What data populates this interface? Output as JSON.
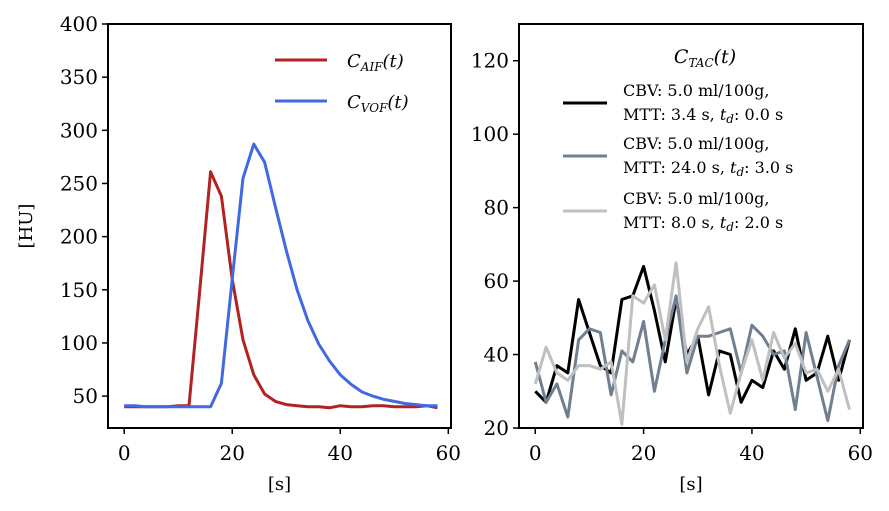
{
  "chart_data": [
    {
      "type": "line",
      "xlabel": "[s]",
      "ylabel": "[HU]",
      "xlim": [
        -3,
        60.5
      ],
      "ylim": [
        20,
        400
      ],
      "xticks": [
        0,
        20,
        40,
        60
      ],
      "yticks": [
        50,
        100,
        150,
        200,
        250,
        300,
        350,
        400
      ],
      "legend_position": "top-right",
      "series": [
        {
          "name": "C_AIF(t)",
          "label_main": "C",
          "label_sub": "AIF",
          "label_arg": "(t)",
          "color": "#b22222",
          "x": [
            0,
            2,
            4,
            6,
            8,
            10,
            12,
            14,
            16,
            18,
            20,
            22,
            24,
            26,
            28,
            30,
            32,
            34,
            36,
            38,
            40,
            42,
            44,
            46,
            48,
            50,
            52,
            54,
            56,
            58
          ],
          "y": [
            40,
            40,
            40,
            40,
            40,
            41,
            41,
            150,
            261,
            238,
            160,
            103,
            70,
            52,
            45,
            42,
            41,
            40,
            40,
            39,
            41,
            40,
            40,
            41,
            41,
            40,
            40,
            40,
            41,
            39
          ]
        },
        {
          "name": "C_VOF(t)",
          "label_main": "C",
          "label_sub": "VOF",
          "label_arg": "(t)",
          "color": "#4169e1",
          "x": [
            0,
            2,
            4,
            6,
            8,
            10,
            12,
            14,
            16,
            18,
            20,
            22,
            24,
            26,
            28,
            30,
            32,
            34,
            36,
            38,
            40,
            42,
            44,
            46,
            48,
            50,
            52,
            54,
            56,
            58
          ],
          "y": [
            41,
            41,
            40,
            40,
            40,
            40,
            40,
            40,
            40,
            62,
            160,
            255,
            287,
            270,
            228,
            187,
            150,
            121,
            99,
            83,
            70,
            61,
            54,
            50,
            47,
            45,
            43,
            42,
            41,
            41
          ]
        }
      ]
    },
    {
      "type": "line",
      "xlabel": "[s]",
      "ylabel": "",
      "xlim": [
        -3,
        60.5
      ],
      "ylim": [
        20,
        130
      ],
      "xticks": [
        0,
        20,
        40,
        60
      ],
      "yticks": [
        20,
        40,
        60,
        80,
        100,
        120
      ],
      "legend_position": "top",
      "legend_title_main": "C",
      "legend_title_sub": "TAC",
      "legend_title_arg": "(t)",
      "series": [
        {
          "name": "CBV: 5.0 ml/100g, MTT: 3.4 s, t_d: 0.0 s",
          "line1": "CBV: 5.0 ml/100g,",
          "line2_prefix": "MTT: 3.4 s, ",
          "line2_td_main": "t",
          "line2_td_sub": "d",
          "line2_suffix": ": 0.0 s",
          "color": "#000000",
          "x": [
            0,
            2,
            4,
            6,
            8,
            10,
            12,
            14,
            16,
            18,
            20,
            22,
            24,
            26,
            28,
            30,
            32,
            34,
            36,
            38,
            40,
            42,
            44,
            46,
            48,
            50,
            52,
            54,
            56,
            58
          ],
          "y": [
            30,
            27,
            37,
            35,
            55,
            46,
            37,
            35,
            55,
            56,
            64,
            52,
            38,
            55,
            40,
            45,
            29,
            41,
            40,
            27,
            33,
            31,
            41,
            36,
            47,
            33,
            35,
            45,
            33,
            44
          ]
        },
        {
          "name": "CBV: 5.0 ml/100g, MTT: 24.0 s, t_d: 3.0 s",
          "line1": "CBV: 5.0 ml/100g,",
          "line2_prefix": "MTT: 24.0 s, ",
          "line2_td_main": "t",
          "line2_td_sub": "d",
          "line2_suffix": ": 3.0 s",
          "color": "#708090",
          "x": [
            0,
            2,
            4,
            6,
            8,
            10,
            12,
            14,
            16,
            18,
            20,
            22,
            24,
            26,
            28,
            30,
            32,
            34,
            36,
            38,
            40,
            42,
            44,
            46,
            48,
            50,
            52,
            54,
            56,
            58
          ],
          "y": [
            38,
            27,
            32,
            23,
            44,
            47,
            46,
            29,
            41,
            38,
            49,
            30,
            44,
            56,
            35,
            45,
            45,
            46,
            47,
            35,
            48,
            45,
            40,
            41,
            25,
            46,
            34,
            22,
            37,
            44
          ]
        },
        {
          "name": "CBV: 5.0 ml/100g, MTT: 8.0 s, t_d: 2.0 s",
          "line1": "CBV: 5.0 ml/100g,",
          "line2_prefix": "MTT: 8.0 s, ",
          "line2_td_main": "t",
          "line2_td_sub": "d",
          "line2_suffix": ": 2.0 s",
          "color": "#c0c0c0",
          "x": [
            0,
            2,
            4,
            6,
            8,
            10,
            12,
            14,
            16,
            18,
            20,
            22,
            24,
            26,
            28,
            30,
            32,
            34,
            36,
            38,
            40,
            42,
            44,
            46,
            48,
            50,
            52,
            54,
            56,
            58
          ],
          "y": [
            32,
            42,
            35,
            33,
            37,
            37,
            36,
            38,
            21,
            56,
            54,
            59,
            44,
            65,
            38,
            47,
            53,
            37,
            24,
            35,
            44,
            33,
            46,
            39,
            43,
            35,
            36,
            30,
            36,
            25
          ]
        }
      ]
    }
  ]
}
